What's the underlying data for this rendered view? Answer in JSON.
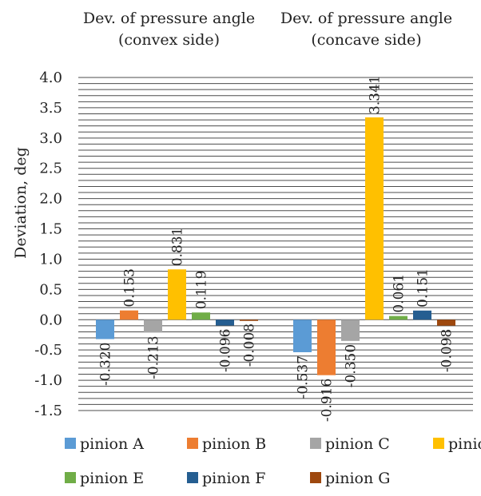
{
  "chart_data": {
    "type": "bar",
    "categories": [
      [
        "Dev. of pressure angle",
        "(convex side)"
      ],
      [
        "Dev. of pressure angle",
        "(concave side)"
      ]
    ],
    "series": [
      {
        "name": "pinion A",
        "color": "#5b9bd5",
        "values": [
          -0.32,
          -0.537
        ],
        "labels": [
          "-0.320",
          "-0.537"
        ]
      },
      {
        "name": "pinion B",
        "color": "#ed7d31",
        "values": [
          0.153,
          -0.916
        ],
        "labels": [
          "0.153",
          "-0.916"
        ]
      },
      {
        "name": "pinion C",
        "color": "#a5a5a5",
        "values": [
          -0.213,
          -0.35
        ],
        "labels": [
          "-0.213",
          "-0.350"
        ]
      },
      {
        "name": "pinion D",
        "color": "#ffc000",
        "values": [
          0.831,
          3.341
        ],
        "labels": [
          "0.831",
          "3.341"
        ]
      },
      {
        "name": "pinion E",
        "color": "#70ad47",
        "values": [
          0.119,
          0.061
        ],
        "labels": [
          "0.119",
          "0.061"
        ]
      },
      {
        "name": "pinion F",
        "color": "#255e91",
        "values": [
          -0.096,
          0.151
        ],
        "labels": [
          "-0.096",
          "0.151"
        ]
      },
      {
        "name": "pinion G",
        "color": "#9e480e",
        "values": [
          -0.008,
          -0.098
        ],
        "labels": [
          "-0.008",
          "-0.098"
        ]
      }
    ],
    "ylabel": "Deviation, deg",
    "ylim": [
      -1.5,
      4.0
    ],
    "yticks": [
      "-1.5",
      "-1.0",
      "-0.5",
      "0.0",
      "0.5",
      "1.0",
      "1.5",
      "2.0",
      "2.5",
      "3.0",
      "3.5",
      "4.0"
    ],
    "minor_grid_step": 0.1,
    "grid": true,
    "legend": "bottom"
  }
}
